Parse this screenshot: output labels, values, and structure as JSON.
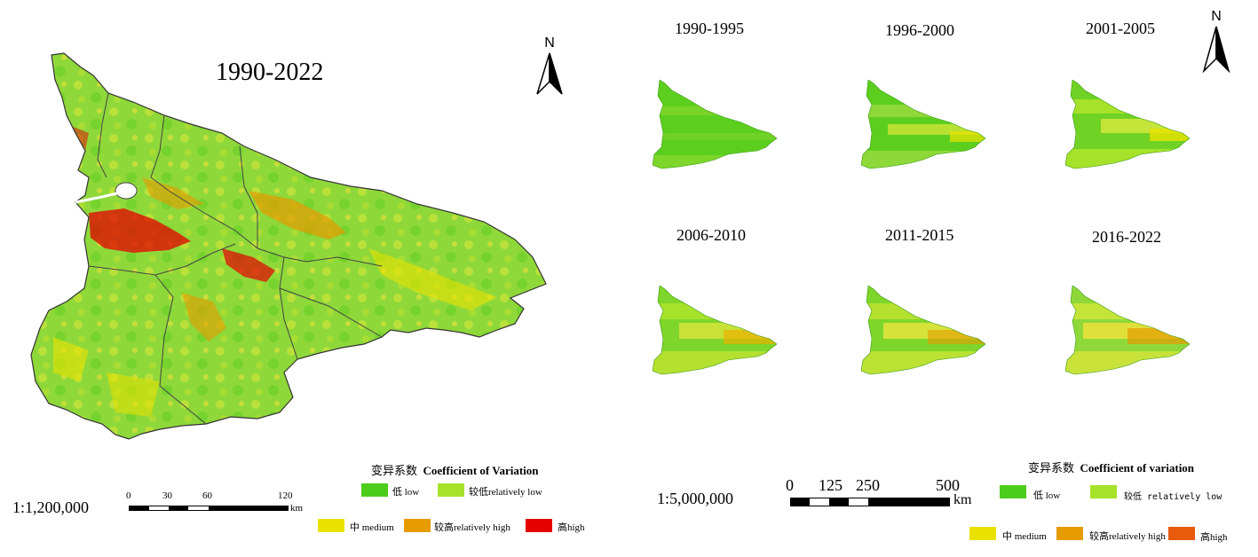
{
  "left": {
    "title": "1990-2022",
    "north": "N",
    "scale_ratio": "1:1,200,000",
    "scale_ticks": [
      "0",
      "30",
      "60",
      "120"
    ],
    "scale_unit": "km",
    "legend_title_cn": "变异系数",
    "legend_title_en": "Coefficient of Variation",
    "legend": [
      {
        "label": "低 low",
        "color": "#4ccd1c"
      },
      {
        "label": "较低relatively low",
        "color": "#a6e22a"
      },
      {
        "label": "中 medium",
        "color": "#e9e200"
      },
      {
        "label": "较高relatively high",
        "color": "#e69b00"
      },
      {
        "label": "高high",
        "color": "#e60000"
      }
    ]
  },
  "right": {
    "north": "N",
    "panels": [
      {
        "title": "1990-1995"
      },
      {
        "title": "1996-2000"
      },
      {
        "title": "2001-2005"
      },
      {
        "title": "2006-2010"
      },
      {
        "title": "2011-2015"
      },
      {
        "title": "2016-2022"
      }
    ],
    "scale_ratio": "1:5,000,000",
    "scale_ticks": [
      "0",
      "125",
      "250",
      "500"
    ],
    "scale_unit": "km",
    "legend_title_cn": "变异系数",
    "legend_title_en": "Coefficient of variation",
    "legend": [
      {
        "label": "低 low",
        "color": "#4ccd1c"
      },
      {
        "label": "较低 relatively low",
        "color": "#a6e22a"
      },
      {
        "label": "中 medium",
        "color": "#e9e200"
      },
      {
        "label": "较高relatively high",
        "color": "#e69b00"
      },
      {
        "label": "高high",
        "color": "#e85a0c"
      }
    ]
  }
}
